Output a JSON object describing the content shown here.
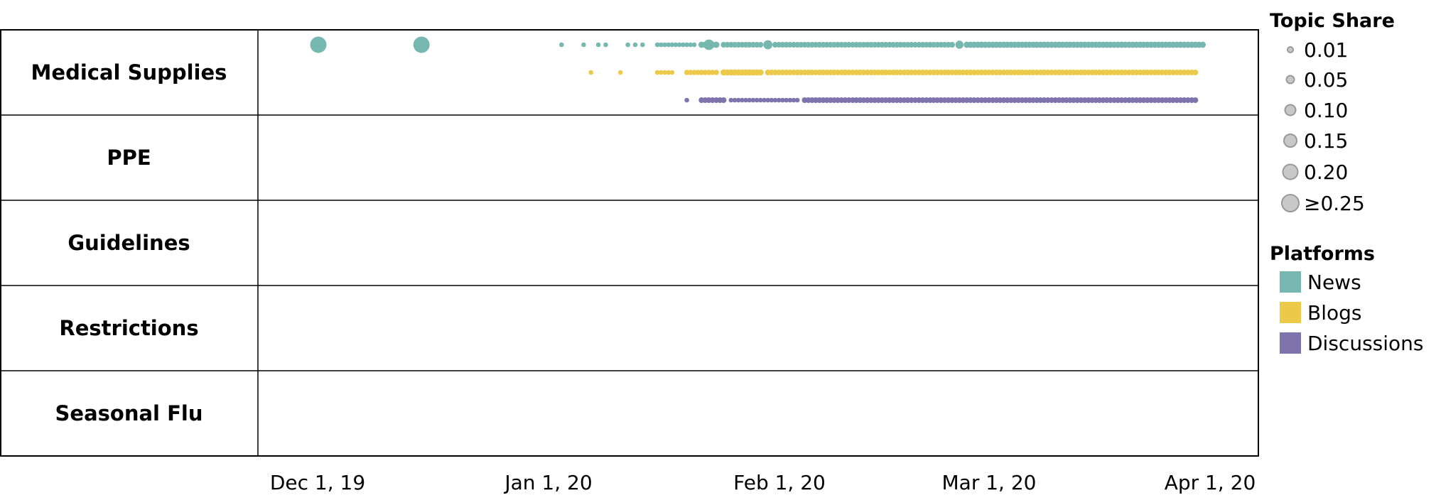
{
  "chart_data": {
    "type": "scatter",
    "title": "",
    "xlabel": "",
    "ylabel": "",
    "x_ticks": [
      "Dec 1, 19",
      "Jan 1, 20",
      "Feb 1, 20",
      "Mar 1, 20",
      "Apr 1, 20"
    ],
    "xlim": [
      "2019-11-24",
      "2020-04-01"
    ],
    "categories": [
      "Medical Supplies",
      "PPE",
      "Guidelines",
      "Restrictions",
      "Seasonal Flu"
    ],
    "platforms": [
      {
        "name": "News",
        "color": "#76b7b0"
      },
      {
        "name": "Blogs",
        "color": "#edc949"
      },
      {
        "name": "Discussions",
        "color": "#7f73ad"
      }
    ],
    "size_legend": {
      "title": "Topic Share",
      "levels": [
        {
          "label": "0.01",
          "value": 0.01
        },
        {
          "label": "0.05",
          "value": 0.05
        },
        {
          "label": "0.10",
          "value": 0.1
        },
        {
          "label": "0.15",
          "value": 0.15
        },
        {
          "label": "0.20",
          "value": 0.2
        },
        {
          "label": "≥0.25",
          "value": 0.25
        }
      ]
    },
    "platform_legend_title": "Platforms",
    "series": [
      {
        "topic": "Medical Supplies",
        "platform": "News",
        "points": [
          [
            "2019-12-02",
            0.25
          ],
          [
            "2019-12-16",
            0.25
          ],
          [
            "2020-01-04",
            0.01
          ],
          [
            "2020-01-07",
            0.01
          ],
          [
            "2020-01-09",
            0.01
          ],
          [
            "2020-01-10",
            0.01
          ],
          [
            "2020-01-13",
            0.01
          ],
          [
            "2020-01-14",
            0.01
          ],
          [
            "2020-01-15",
            0.01
          ],
          {
            "from": "2020-01-17",
            "to": "2020-01-22",
            "value": 0.01
          },
          {
            "from": "2020-01-23",
            "to": "2020-01-25",
            "value": 0.04
          },
          [
            "2020-01-24",
            0.13
          ],
          {
            "from": "2020-01-26",
            "to": "2020-01-31",
            "value": 0.03
          },
          [
            "2020-02-01",
            0.1
          ],
          {
            "from": "2020-02-02",
            "to": "2020-02-26",
            "value": 0.03
          },
          [
            "2020-02-27",
            0.08
          ],
          {
            "from": "2020-02-28",
            "to": "2020-03-31",
            "value": 0.04
          }
        ]
      },
      {
        "topic": "Medical Supplies",
        "platform": "Blogs",
        "points": [
          [
            "2020-01-08",
            0.01
          ],
          [
            "2020-01-12",
            0.01
          ],
          {
            "from": "2020-01-17",
            "to": "2020-01-19",
            "value": 0.01
          },
          {
            "from": "2020-01-21",
            "to": "2020-01-25",
            "value": 0.02
          },
          {
            "from": "2020-01-26",
            "to": "2020-01-31",
            "value": 0.04
          },
          {
            "from": "2020-02-01",
            "to": "2020-03-30",
            "value": 0.03
          }
        ]
      },
      {
        "topic": "Medical Supplies",
        "platform": "Discussions",
        "points": [
          [
            "2020-01-21",
            0.01
          ],
          {
            "from": "2020-01-23",
            "to": "2020-01-26",
            "value": 0.03
          },
          {
            "from": "2020-01-27",
            "to": "2020-02-05",
            "value": 0.01
          },
          {
            "from": "2020-02-06",
            "to": "2020-03-30",
            "value": 0.03
          }
        ]
      }
    ]
  },
  "note": ""
}
